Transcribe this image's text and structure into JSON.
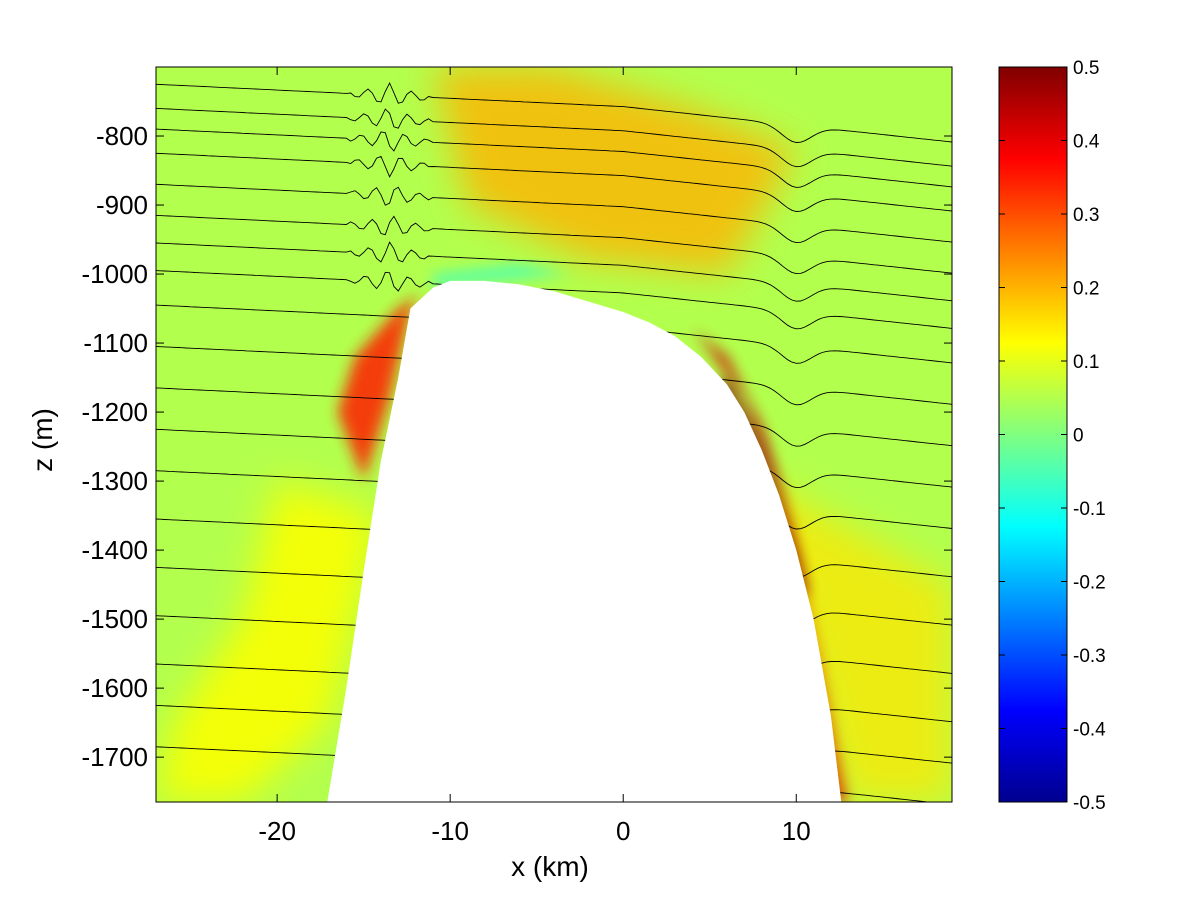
{
  "chart_data": {
    "type": "heatmap",
    "title": "",
    "xlabel": "x (km)",
    "ylabel": "z (m)",
    "xlim": [
      -27,
      19
    ],
    "ylim": [
      -1765,
      -700
    ],
    "xticks": [
      -20,
      -10,
      0,
      10
    ],
    "yticks": [
      -800,
      -900,
      -1000,
      -1100,
      -1200,
      -1300,
      -1400,
      -1500,
      -1600,
      -1700
    ],
    "colorbar": {
      "range": [
        -0.5,
        0.5
      ],
      "ticks": [
        0.5,
        0.4,
        0.3,
        0.2,
        0.1,
        0,
        -0.1,
        -0.2,
        -0.3,
        -0.4,
        -0.5
      ],
      "colormap": "jet",
      "colors": [
        "#00008f",
        "#0000ff",
        "#0080ff",
        "#00ffff",
        "#80ff80",
        "#ffff00",
        "#ff8000",
        "#ff0000",
        "#800000"
      ]
    },
    "background_value": 0.05,
    "topography": {
      "description_points_x": [
        -17.1,
        -16.0,
        -15.0,
        -14.0,
        -13.0,
        -12.3,
        -11.0,
        -10.0,
        -8.0,
        -6.0,
        -4.0,
        -2.0,
        0.0,
        1.5,
        3.0,
        4.5,
        6.0,
        7.0,
        8.0,
        9.0,
        10.0,
        11.0,
        12.0,
        12.6
      ],
      "description_points_z": [
        -1765,
        -1600,
        -1430,
        -1270,
        -1150,
        -1050,
        -1020,
        -1010,
        -1010,
        -1015,
        -1025,
        -1040,
        -1055,
        -1070,
        -1090,
        -1120,
        -1160,
        -1200,
        -1255,
        -1320,
        -1400,
        -1500,
        -1640,
        -1765
      ]
    },
    "bands": [
      {
        "name": "left-flank",
        "value": 0.45
      },
      {
        "name": "right-flank",
        "value": 0.5
      },
      {
        "name": "summit-jet",
        "value": 0.25
      },
      {
        "name": "upper-plume",
        "value": 0.15
      },
      {
        "name": "lee-trough",
        "value": -0.06
      }
    ],
    "contour_levels": [
      -760,
      -795,
      -825,
      -860,
      -905,
      -950,
      -990,
      -1030,
      -1080,
      -1140,
      -1200,
      -1260,
      -1320,
      -1390,
      -1460,
      -1530,
      -1600,
      -1660,
      -1720
    ]
  }
}
